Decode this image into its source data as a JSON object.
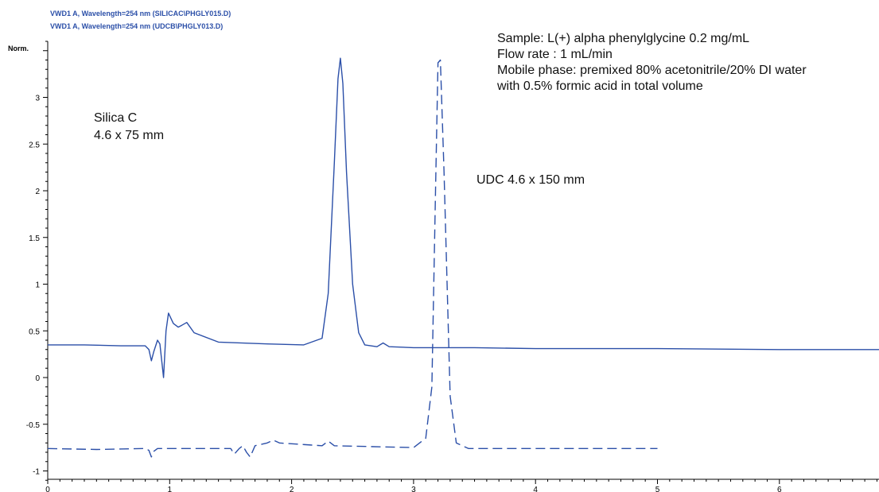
{
  "chart_data": {
    "type": "line",
    "header_lines": [
      "VWD1 A, Wavelength=254 nm (SILICAC\\PHGLY015.D)",
      "VWD1 A, Wavelength=254 nm (UDCB\\PHGLY013.D)"
    ],
    "ylabel": "Norm.",
    "xlabel": "",
    "xlim": [
      0,
      6.85
    ],
    "ylim": [
      -1.1,
      3.65
    ],
    "x_ticks": [
      0,
      1,
      2,
      3,
      4,
      5,
      6
    ],
    "y_ticks": [
      -1,
      -0.5,
      0,
      0.5,
      1,
      1.5,
      2,
      2.5,
      3
    ],
    "grid": false,
    "color": "#2b4fa8",
    "series": [
      {
        "name": "Silica C 4.6 x 75 mm",
        "dash": "solid",
        "x": [
          0,
          0.3,
          0.6,
          0.8,
          0.83,
          0.85,
          0.87,
          0.9,
          0.92,
          0.95,
          0.97,
          0.99,
          1.03,
          1.07,
          1.1,
          1.14,
          1.2,
          1.4,
          1.8,
          2.1,
          2.25,
          2.3,
          2.35,
          2.38,
          2.4,
          2.42,
          2.45,
          2.5,
          2.55,
          2.6,
          2.7,
          2.75,
          2.8,
          3.0,
          3.5,
          4.0,
          5.0,
          6.0,
          6.85
        ],
        "y": [
          0.35,
          0.35,
          0.34,
          0.34,
          0.3,
          0.18,
          0.28,
          0.4,
          0.36,
          0.0,
          0.5,
          0.69,
          0.58,
          0.54,
          0.56,
          0.59,
          0.48,
          0.38,
          0.36,
          0.35,
          0.42,
          0.9,
          2.3,
          3.2,
          3.42,
          3.15,
          2.2,
          1.0,
          0.48,
          0.35,
          0.33,
          0.37,
          0.33,
          0.32,
          0.32,
          0.31,
          0.31,
          0.3,
          0.3
        ]
      },
      {
        "name": "UDC 4.6 x 150 mm",
        "dash": "dashed",
        "x": [
          0,
          0.4,
          0.8,
          0.83,
          0.85,
          0.87,
          0.9,
          1.2,
          1.5,
          1.53,
          1.57,
          1.6,
          1.63,
          1.66,
          1.7,
          1.8,
          1.85,
          1.9,
          2.25,
          2.3,
          2.35,
          3.0,
          3.1,
          3.15,
          3.18,
          3.2,
          3.22,
          3.25,
          3.3,
          3.35,
          3.45,
          4.0,
          5.0
        ],
        "y": [
          -0.76,
          -0.77,
          -0.76,
          -0.78,
          -0.85,
          -0.79,
          -0.76,
          -0.76,
          -0.76,
          -0.82,
          -0.76,
          -0.73,
          -0.8,
          -0.85,
          -0.73,
          -0.7,
          -0.67,
          -0.7,
          -0.73,
          -0.68,
          -0.73,
          -0.75,
          -0.65,
          -0.1,
          2.0,
          3.37,
          3.4,
          2.2,
          -0.2,
          -0.7,
          -0.76,
          -0.76,
          -0.76
        ]
      }
    ],
    "annotations": [
      {
        "id": "silica-c",
        "lines": [
          "Silica C",
          "4.6 x 75 mm"
        ]
      },
      {
        "id": "udc",
        "lines": [
          "UDC 4.6 x 150 mm"
        ]
      },
      {
        "id": "conditions",
        "lines": [
          "Sample: L(+) alpha phenylglycine 0.2 mg/mL",
          "Flow rate : 1 mL/min",
          "Mobile phase: premixed 80% acetonitrile/20% DI water",
          "with 0.5% formic acid in total volume"
        ]
      }
    ]
  }
}
